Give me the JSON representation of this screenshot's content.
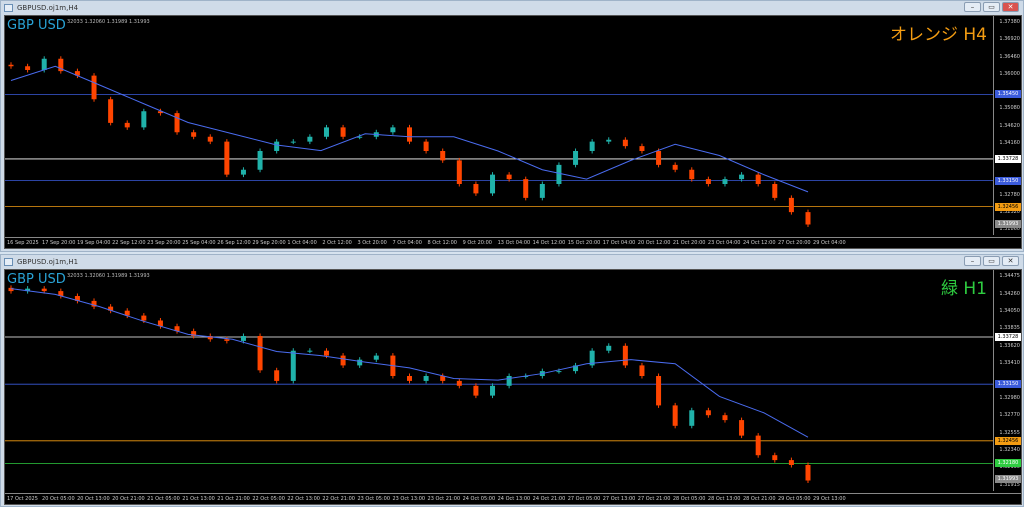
{
  "windows": [
    {
      "title": "GBPUSD.oj1m,H4",
      "symbol": "GBP USD",
      "ohlc": "32033 1.32060 1.31989 1.31993",
      "timeframe_label": "オレンジ H4",
      "timeframe_color": "#f39c12",
      "price_ticks": [
        "1.37380",
        "1.36920",
        "1.36460",
        "1.36000",
        "1.35080",
        "1.34620",
        "1.34160",
        "1.32780",
        "1.32320",
        "1.31860"
      ],
      "time_ticks": [
        "16 Sep 2025",
        "17 Sep 20:00",
        "19 Sep 04:00",
        "22 Sep 12:00",
        "23 Sep 20:00",
        "25 Sep 04:00",
        "26 Sep 12:00",
        "29 Sep 20:00",
        "1 Oct 04:00",
        "2 Oct 12:00",
        "3 Oct 20:00",
        "7 Oct 04:00",
        "8 Oct 12:00",
        "9 Oct 20:00",
        "13 Oct 04:00",
        "14 Oct 12:00",
        "15 Oct 20:00",
        "17 Oct 04:00",
        "20 Oct 12:00",
        "21 Oct 20:00",
        "23 Oct 04:00",
        "24 Oct 12:00",
        "27 Oct 20:00",
        "29 Oct 04:00"
      ],
      "levels": [
        {
          "price": "1.35450",
          "color": "#3b5bdb",
          "text": "#fff"
        },
        {
          "price": "1.33728",
          "color": "#ffffff",
          "text": "#000"
        },
        {
          "price": "1.33150",
          "color": "#3b5bdb",
          "text": "#fff"
        },
        {
          "price": "1.32456",
          "color": "#f39c12",
          "text": "#000"
        },
        {
          "price": "1.31993",
          "color": "#8a8a8a",
          "text": "#fff"
        }
      ]
    },
    {
      "title": "GBPUSD.oj1m,H1",
      "symbol": "GBP USD",
      "ohlc": "32033 1.32060 1.31989 1.31993",
      "timeframe_label": "緑 H1",
      "timeframe_color": "#2ecc40",
      "price_ticks": [
        "1.34475",
        "1.34260",
        "1.34050",
        "1.33835",
        "1.33620",
        "1.33410",
        "1.32980",
        "1.32770",
        "1.32555",
        "1.32340",
        "1.32130",
        "1.31915"
      ],
      "time_ticks": [
        "17 Oct 2025",
        "20 Oct 05:00",
        "20 Oct 13:00",
        "20 Oct 21:00",
        "21 Oct 05:00",
        "21 Oct 13:00",
        "21 Oct 21:00",
        "22 Oct 05:00",
        "22 Oct 13:00",
        "22 Oct 21:00",
        "23 Oct 05:00",
        "23 Oct 13:00",
        "23 Oct 21:00",
        "24 Oct 05:00",
        "24 Oct 13:00",
        "24 Oct 21:00",
        "27 Oct 05:00",
        "27 Oct 13:00",
        "27 Oct 21:00",
        "28 Oct 05:00",
        "28 Oct 13:00",
        "28 Oct 21:00",
        "29 Oct 05:00",
        "29 Oct 13:00"
      ],
      "levels": [
        {
          "price": "1.33728",
          "color": "#ffffff",
          "text": "#000"
        },
        {
          "price": "1.33150",
          "color": "#3b5bdb",
          "text": "#fff"
        },
        {
          "price": "1.32456",
          "color": "#f39c12",
          "text": "#000"
        },
        {
          "price": "1.32180",
          "color": "#2ecc40",
          "text": "#fff"
        },
        {
          "price": "1.31993",
          "color": "#8a8a8a",
          "text": "#fff"
        }
      ]
    }
  ],
  "colors": {
    "bull": "#20b2aa",
    "bear": "#ff4500",
    "ma": "#4a6cf0"
  },
  "chart_data": [
    {
      "type": "candlestick",
      "title": "GBP USD H4",
      "ylim": [
        1.3186,
        1.3738
      ],
      "close": [
        1.362,
        1.361,
        1.364,
        1.3607,
        1.3595,
        1.3532,
        1.3469,
        1.3457,
        1.35,
        1.3495,
        1.3444,
        1.3432,
        1.3419,
        1.3331,
        1.3344,
        1.3394,
        1.3419,
        1.3419,
        1.3432,
        1.3457,
        1.3432,
        1.3432,
        1.3444,
        1.3457,
        1.3419,
        1.3394,
        1.3369,
        1.3306,
        1.3281,
        1.3331,
        1.3319,
        1.3269,
        1.3306,
        1.3357,
        1.3394,
        1.3419,
        1.3424,
        1.3407,
        1.3394,
        1.3357,
        1.3344,
        1.3319,
        1.3306,
        1.3319,
        1.3331,
        1.3306,
        1.3269,
        1.3231,
        1.3198
      ],
      "ma": [
        1.3582,
        1.362,
        1.357,
        1.352,
        1.347,
        1.344,
        1.341,
        1.3395,
        1.344,
        1.3432,
        1.3432,
        1.3394,
        1.3344,
        1.3319,
        1.3369,
        1.3412,
        1.3382,
        1.3331,
        1.3285
      ]
    },
    {
      "type": "candlestick",
      "title": "GBP USD H1",
      "ylim": [
        1.31915,
        1.34475
      ],
      "close": [
        1.3429,
        1.3432,
        1.3429,
        1.3423,
        1.3417,
        1.341,
        1.3405,
        1.3399,
        1.3393,
        1.3386,
        1.338,
        1.3374,
        1.337,
        1.3368,
        1.3374,
        1.3332,
        1.3319,
        1.3356,
        1.3356,
        1.335,
        1.3338,
        1.3345,
        1.335,
        1.3325,
        1.3319,
        1.3325,
        1.3319,
        1.3313,
        1.3301,
        1.3313,
        1.3325,
        1.3325,
        1.3331,
        1.3331,
        1.3338,
        1.3356,
        1.3362,
        1.3338,
        1.3325,
        1.3289,
        1.3264,
        1.3283,
        1.3277,
        1.3271,
        1.3252,
        1.3228,
        1.3222,
        1.3216,
        1.3197
      ],
      "ma": [
        1.3432,
        1.3425,
        1.341,
        1.3392,
        1.3376,
        1.337,
        1.3355,
        1.335,
        1.3342,
        1.3335,
        1.3322,
        1.332,
        1.3328,
        1.334,
        1.3345,
        1.334,
        1.33,
        1.328,
        1.325
      ]
    }
  ]
}
